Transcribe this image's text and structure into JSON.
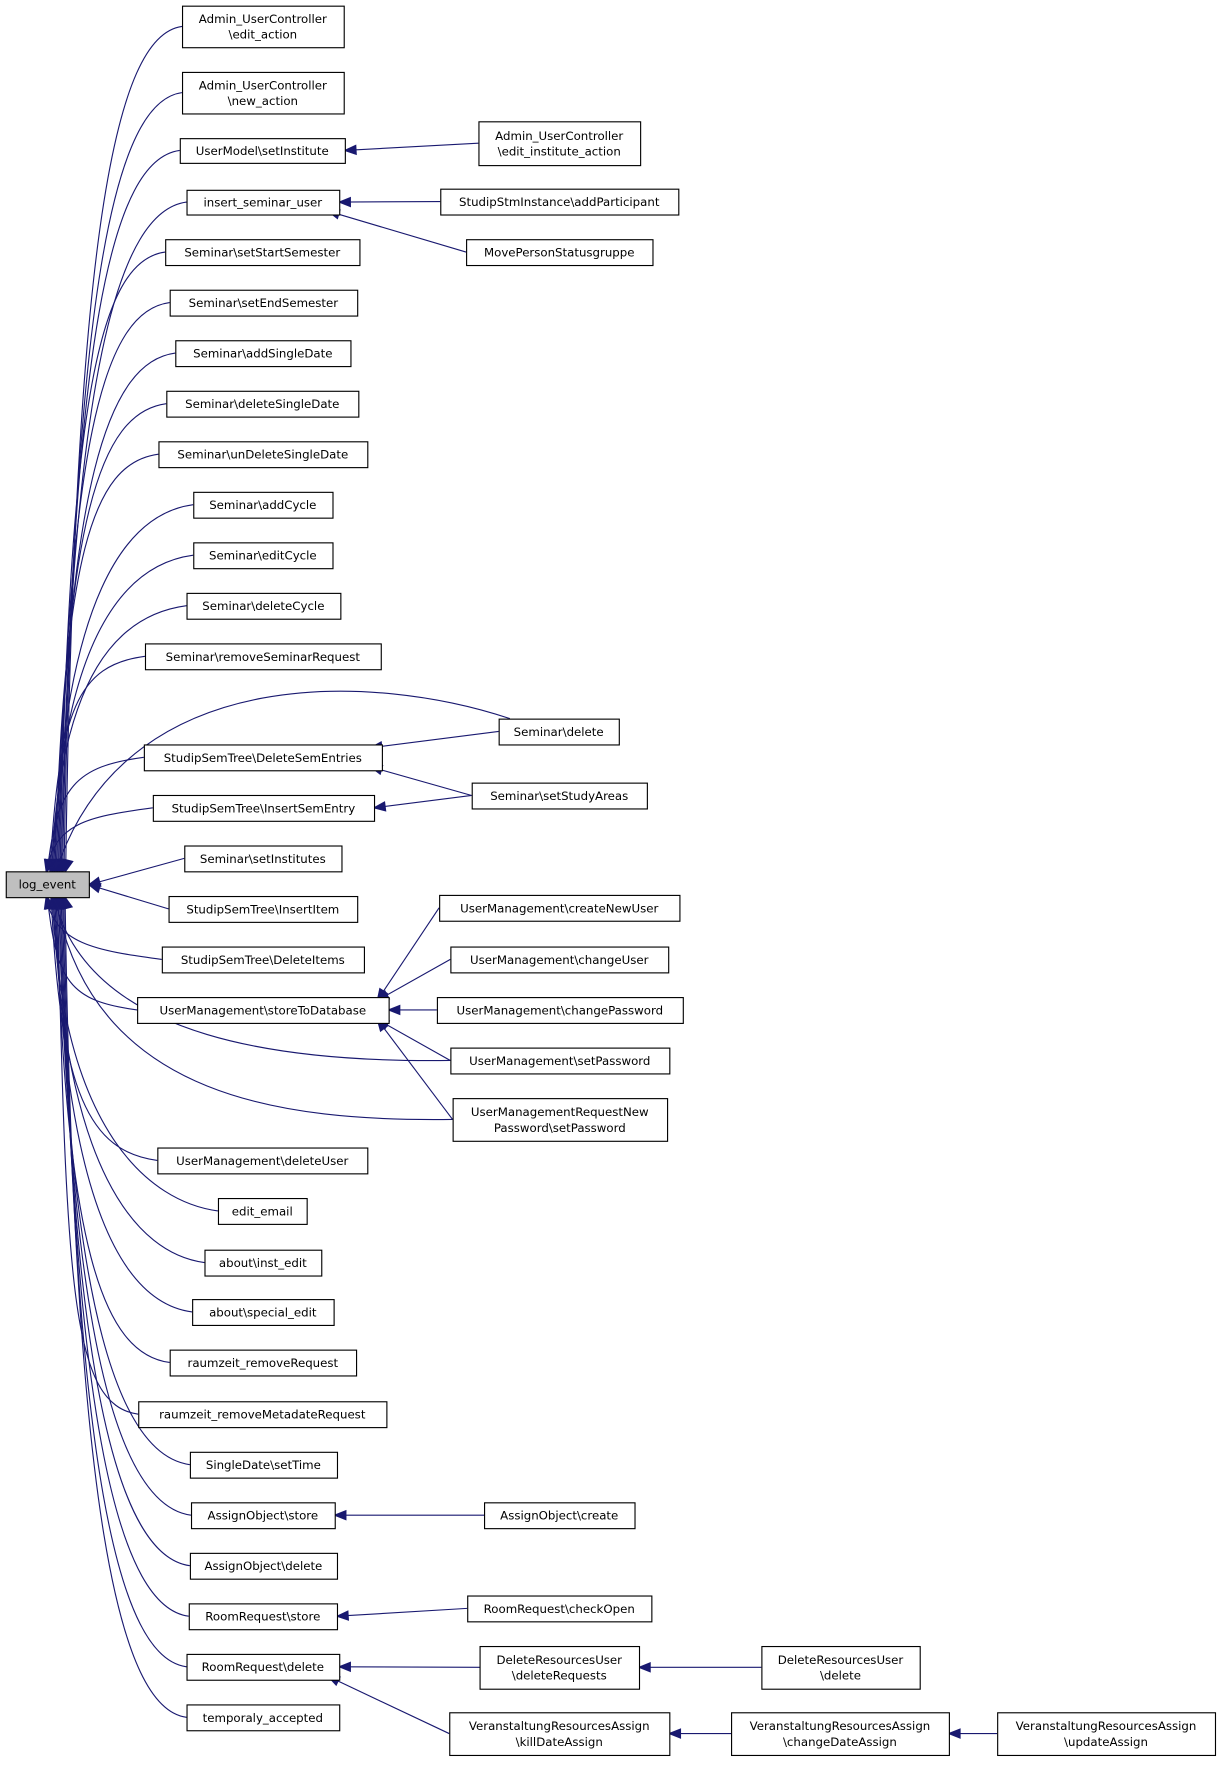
{
  "graph": {
    "type": "caller-graph",
    "edge_color": "#191970",
    "root_fill": "#bfbfbf",
    "root": {
      "id": "root",
      "label": [
        "log_event"
      ]
    },
    "nodes": [
      {
        "id": "n1",
        "label": [
          "Admin_UserController",
          "\\edit_action"
        ]
      },
      {
        "id": "n2",
        "label": [
          "Admin_UserController",
          "\\new_action"
        ]
      },
      {
        "id": "n3",
        "label": [
          "UserModel\\setInstitute"
        ]
      },
      {
        "id": "n4",
        "label": [
          "insert_seminar_user"
        ]
      },
      {
        "id": "n5",
        "label": [
          "Seminar\\setStartSemester"
        ]
      },
      {
        "id": "n6",
        "label": [
          "Seminar\\setEndSemester"
        ]
      },
      {
        "id": "n7",
        "label": [
          "Seminar\\addSingleDate"
        ]
      },
      {
        "id": "n8",
        "label": [
          "Seminar\\deleteSingleDate"
        ]
      },
      {
        "id": "n9",
        "label": [
          "Seminar\\unDeleteSingleDate"
        ]
      },
      {
        "id": "n10",
        "label": [
          "Seminar\\addCycle"
        ]
      },
      {
        "id": "n11",
        "label": [
          "Seminar\\editCycle"
        ]
      },
      {
        "id": "n12",
        "label": [
          "Seminar\\deleteCycle"
        ]
      },
      {
        "id": "n13",
        "label": [
          "Seminar\\removeSeminarRequest"
        ]
      },
      {
        "id": "n14",
        "label": [
          "StudipSemTree\\DeleteSemEntries"
        ]
      },
      {
        "id": "n15",
        "label": [
          "StudipSemTree\\InsertSemEntry"
        ]
      },
      {
        "id": "n16",
        "label": [
          "Seminar\\setInstitutes"
        ]
      },
      {
        "id": "n17",
        "label": [
          "StudipSemTree\\InsertItem"
        ]
      },
      {
        "id": "n18",
        "label": [
          "StudipSemTree\\DeleteItems"
        ]
      },
      {
        "id": "n19",
        "label": [
          "UserManagement\\storeToDatabase"
        ]
      },
      {
        "id": "n20",
        "label": [
          "UserManagement\\deleteUser"
        ]
      },
      {
        "id": "n21",
        "label": [
          "edit_email"
        ]
      },
      {
        "id": "n22",
        "label": [
          "about\\inst_edit"
        ]
      },
      {
        "id": "n23",
        "label": [
          "about\\special_edit"
        ]
      },
      {
        "id": "n24",
        "label": [
          "raumzeit_removeRequest"
        ]
      },
      {
        "id": "n25",
        "label": [
          "raumzeit_removeMetadateRequest"
        ]
      },
      {
        "id": "n26",
        "label": [
          "SingleDate\\setTime"
        ]
      },
      {
        "id": "n27",
        "label": [
          "AssignObject\\store"
        ]
      },
      {
        "id": "n28",
        "label": [
          "AssignObject\\delete"
        ]
      },
      {
        "id": "n29",
        "label": [
          "RoomRequest\\store"
        ]
      },
      {
        "id": "n30",
        "label": [
          "RoomRequest\\delete"
        ]
      },
      {
        "id": "n31",
        "label": [
          "temporaly_accepted"
        ]
      },
      {
        "id": "m1",
        "label": [
          "Admin_UserController",
          "\\edit_institute_action"
        ]
      },
      {
        "id": "m2",
        "label": [
          "StudipStmInstance\\addParticipant"
        ]
      },
      {
        "id": "m3",
        "label": [
          "MovePersonStatusgruppe"
        ]
      },
      {
        "id": "m4",
        "label": [
          "Seminar\\delete"
        ]
      },
      {
        "id": "m5",
        "label": [
          "Seminar\\setStudyAreas"
        ]
      },
      {
        "id": "m6",
        "label": [
          "UserManagement\\createNewUser"
        ]
      },
      {
        "id": "m7",
        "label": [
          "UserManagement\\changeUser"
        ]
      },
      {
        "id": "m8",
        "label": [
          "UserManagement\\changePassword"
        ]
      },
      {
        "id": "m9",
        "label": [
          "UserManagement\\setPassword"
        ]
      },
      {
        "id": "m10",
        "label": [
          "UserManagementRequestNew",
          "Password\\setPassword"
        ]
      },
      {
        "id": "m11",
        "label": [
          "AssignObject\\create"
        ]
      },
      {
        "id": "m12",
        "label": [
          "RoomRequest\\checkOpen"
        ]
      },
      {
        "id": "m13",
        "label": [
          "DeleteResourcesUser",
          "\\deleteRequests"
        ]
      },
      {
        "id": "m14",
        "label": [
          "VeranstaltungResourcesAssign",
          "\\killDateAssign"
        ]
      },
      {
        "id": "k1",
        "label": [
          "DeleteResourcesUser",
          "\\delete"
        ]
      },
      {
        "id": "k2",
        "label": [
          "VeranstaltungResourcesAssign",
          "\\changeDateAssign"
        ]
      },
      {
        "id": "j1",
        "label": [
          "VeranstaltungResourcesAssign",
          "\\updateAssign"
        ]
      }
    ],
    "edges": [
      [
        "n1",
        "root"
      ],
      [
        "n2",
        "root"
      ],
      [
        "n3",
        "root"
      ],
      [
        "n4",
        "root"
      ],
      [
        "n5",
        "root"
      ],
      [
        "n6",
        "root"
      ],
      [
        "n7",
        "root"
      ],
      [
        "n8",
        "root"
      ],
      [
        "n9",
        "root"
      ],
      [
        "n10",
        "root"
      ],
      [
        "n11",
        "root"
      ],
      [
        "n12",
        "root"
      ],
      [
        "n13",
        "root"
      ],
      [
        "m4",
        "root"
      ],
      [
        "n14",
        "root"
      ],
      [
        "n15",
        "root"
      ],
      [
        "n16",
        "root"
      ],
      [
        "n17",
        "root"
      ],
      [
        "n18",
        "root"
      ],
      [
        "n19",
        "root"
      ],
      [
        "m9",
        "root"
      ],
      [
        "m10",
        "root"
      ],
      [
        "n20",
        "root"
      ],
      [
        "n21",
        "root"
      ],
      [
        "n22",
        "root"
      ],
      [
        "n23",
        "root"
      ],
      [
        "n24",
        "root"
      ],
      [
        "n25",
        "root"
      ],
      [
        "n26",
        "root"
      ],
      [
        "n27",
        "root"
      ],
      [
        "n28",
        "root"
      ],
      [
        "n29",
        "root"
      ],
      [
        "n30",
        "root"
      ],
      [
        "n31",
        "root"
      ],
      [
        "m1",
        "n3"
      ],
      [
        "m2",
        "n4"
      ],
      [
        "m3",
        "n4"
      ],
      [
        "m4",
        "n14"
      ],
      [
        "m5",
        "n14"
      ],
      [
        "m5",
        "n15"
      ],
      [
        "m6",
        "n19"
      ],
      [
        "m7",
        "n19"
      ],
      [
        "m8",
        "n19"
      ],
      [
        "m9",
        "n19"
      ],
      [
        "m10",
        "n19"
      ],
      [
        "m11",
        "n27"
      ],
      [
        "m12",
        "n29"
      ],
      [
        "m13",
        "n30"
      ],
      [
        "m14",
        "n30"
      ],
      [
        "k1",
        "m13"
      ],
      [
        "k2",
        "m14"
      ],
      [
        "j1",
        "k2"
      ]
    ]
  }
}
